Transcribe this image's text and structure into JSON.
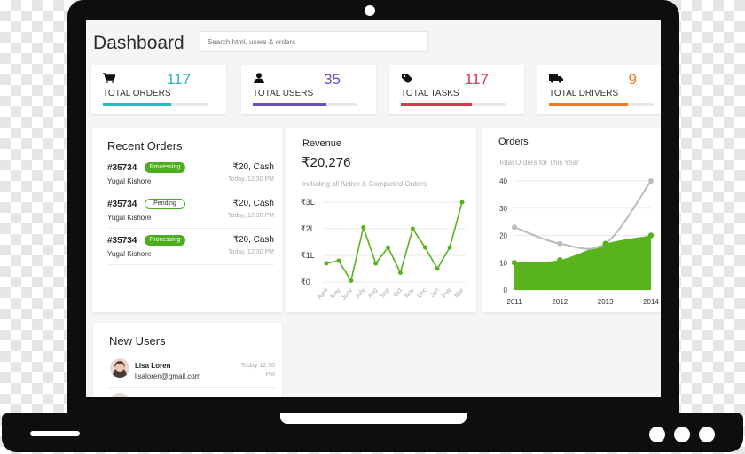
{
  "header": {
    "title": "Dashboard",
    "search_placeholder": "Search html, users & orders"
  },
  "stats": [
    {
      "label": "TOTAL ORDERS",
      "value": "117",
      "color": "#2bb5c4",
      "progress": 0.65,
      "icon": "cart-icon"
    },
    {
      "label": "TOTAL USERS",
      "value": "35",
      "color": "#6c4fb0",
      "progress": 0.7,
      "icon": "user-icon"
    },
    {
      "label": "TOTAL TASKS",
      "value": "117",
      "color": "#e0334b",
      "progress": 0.68,
      "icon": "tag-icon"
    },
    {
      "label": "TOTAL DRIVERS",
      "value": "9",
      "color": "#f07b22",
      "progress": 0.75,
      "icon": "truck-icon"
    }
  ],
  "recent_orders": {
    "title": "Recent Orders",
    "items": [
      {
        "id": "#35734",
        "status": "Processing",
        "customer": "Yugal Kishore",
        "amount": "₹20, Cash",
        "time": "Today, 12:30 PM"
      },
      {
        "id": "#35734",
        "status": "Pending",
        "customer": "Yugal Kishore",
        "amount": "₹20, Cash",
        "time": "Today, 12:30 PM"
      },
      {
        "id": "#35734",
        "status": "Processing",
        "customer": "Yugal Kishore",
        "amount": "₹20, Cash",
        "time": "Today, 12:30 PM"
      }
    ]
  },
  "revenue": {
    "title": "Revenue",
    "total": "₹20,276",
    "subtitle": "Including all Active & Completed Orders"
  },
  "orders_chart": {
    "title": "Orders",
    "subtitle": "Total Orders for This Year"
  },
  "new_users": {
    "title": "New Users",
    "items": [
      {
        "name": "Lisa Loren",
        "email": "lisaloren@gmail.com",
        "time": "Today 12:30 PM"
      }
    ]
  },
  "chart_data": [
    {
      "type": "line",
      "title": "Revenue",
      "categories": [
        "April",
        "May",
        "June",
        "July",
        "Aug",
        "Sep",
        "Oct",
        "Nov",
        "Dec",
        "Jan",
        "Feb",
        "Mar"
      ],
      "y_ticks": [
        "₹0",
        "₹1L",
        "₹2L",
        "₹3L"
      ],
      "ylim": [
        0,
        3
      ],
      "series": [
        {
          "name": "Revenue",
          "color": "#58b31c",
          "values": [
            0.7,
            0.8,
            0.05,
            2.05,
            0.7,
            1.3,
            0.35,
            2.0,
            1.3,
            0.5,
            1.3,
            3.0
          ]
        }
      ]
    },
    {
      "type": "area",
      "title": "Orders",
      "subtitle": "Total Orders for This Year",
      "x_ticks": [
        "2011",
        "2012",
        "2013",
        "2014"
      ],
      "y_ticks": [
        "0",
        "10",
        "20",
        "30",
        "40"
      ],
      "ylim": [
        0,
        40
      ],
      "series": [
        {
          "name": "Orders (area)",
          "color": "#58b31c",
          "x": [
            2011,
            2012,
            2013,
            2014
          ],
          "values": [
            10,
            11,
            17,
            20
          ]
        },
        {
          "name": "Orders (line)",
          "color": "#bbbbbb",
          "x": [
            2011,
            2012,
            2013,
            2014
          ],
          "values": [
            23,
            17,
            17,
            40
          ]
        }
      ]
    }
  ]
}
